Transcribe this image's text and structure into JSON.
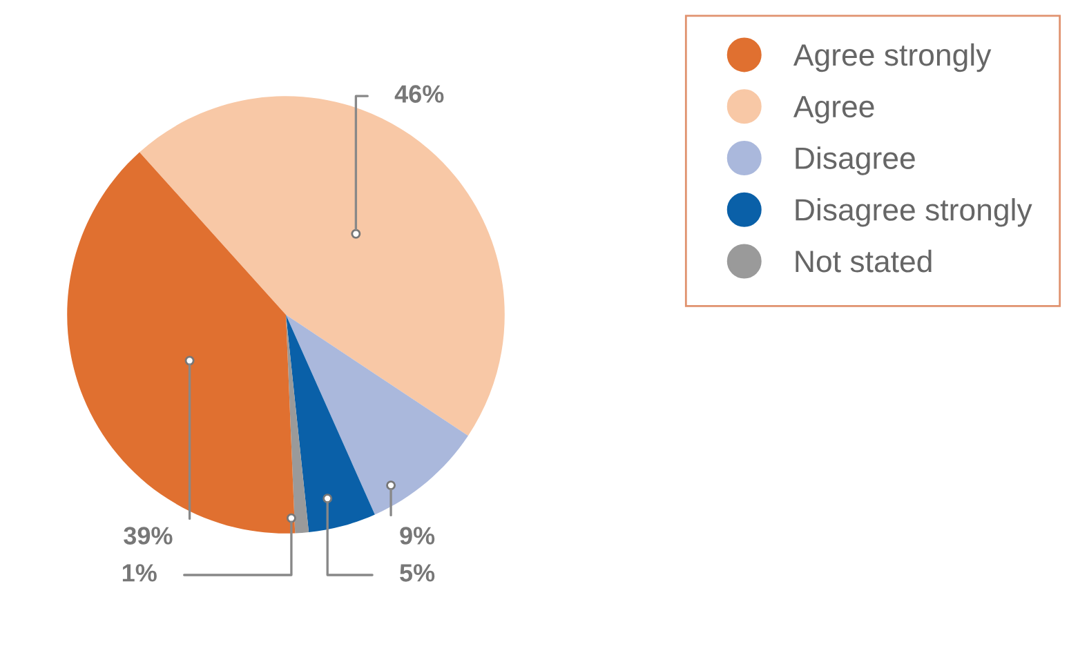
{
  "chart_data": {
    "type": "pie",
    "categories": [
      "Agree strongly",
      "Agree",
      "Disagree",
      "Disagree strongly",
      "Not stated"
    ],
    "values": [
      39,
      46,
      9,
      5,
      1
    ],
    "colors": [
      "#e07030",
      "#f8c8a6",
      "#aab8dc",
      "#0a60a8",
      "#9a9a9a"
    ],
    "value_labels": [
      "39%",
      "46%",
      "9%",
      "5%",
      "1%"
    ],
    "legend": "top right"
  }
}
